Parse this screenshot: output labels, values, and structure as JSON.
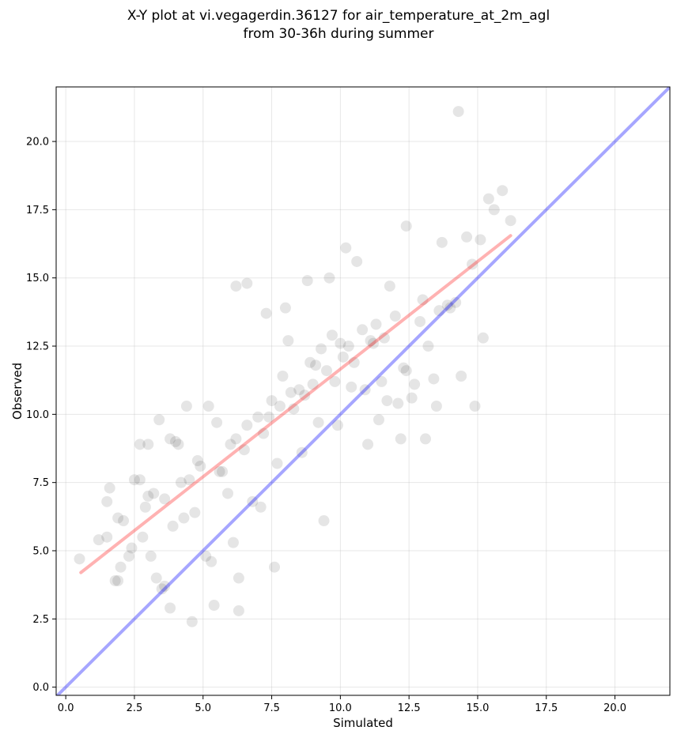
{
  "chart_data": {
    "type": "scatter",
    "title": "X-Y plot at vi.vegagerdin.36127 for air_temperature_at_2m_agl",
    "subtitle": "from 30-36h during summer",
    "xlabel": "Simulated",
    "ylabel": "Observed",
    "xlim": [
      -0.35,
      22.0
    ],
    "ylim": [
      -0.3,
      22.0
    ],
    "x_ticks": [
      "0.0",
      "2.5",
      "5.0",
      "7.5",
      "10.0",
      "12.5",
      "15.0",
      "17.5",
      "20.0"
    ],
    "y_ticks": [
      "0.0",
      "2.5",
      "5.0",
      "7.5",
      "10.0",
      "12.5",
      "15.0",
      "17.5",
      "20.0"
    ],
    "grid": true,
    "marker_color": "#000000",
    "marker_alpha": 0.1,
    "points": {
      "x": [
        0.5,
        1.2,
        1.5,
        1.6,
        1.8,
        1.9,
        2.0,
        2.1,
        2.3,
        2.5,
        2.7,
        2.8,
        2.9,
        3.0,
        3.2,
        3.4,
        3.5,
        3.6,
        3.8,
        3.8,
        3.9,
        4.1,
        4.3,
        4.5,
        4.6,
        4.9,
        5.2,
        5.4,
        5.6,
        5.9,
        6.0,
        6.2,
        6.3,
        6.6,
        7.1,
        7.3,
        7.6,
        7.7,
        8.0,
        8.1,
        8.6,
        8.8,
        9.2,
        9.4,
        9.6,
        9.9,
        10.2,
        10.6,
        11.0,
        11.2,
        11.5,
        11.8,
        12.0,
        12.2,
        12.4,
        12.7,
        13.0,
        13.1,
        13.4,
        13.7,
        14.0,
        14.3,
        14.6,
        14.9,
        15.1,
        15.4,
        15.6,
        15.9,
        16.2,
        1.5,
        1.9,
        2.4,
        3.1,
        3.6,
        4.2,
        4.4,
        4.8,
        5.1,
        5.3,
        5.5,
        6.1,
        6.3,
        6.8,
        7.4,
        8.2,
        9.1,
        9.7,
        10.3,
        10.8,
        11.4,
        12.1,
        12.9,
        13.5,
        14.2,
        3.3,
        3.0,
        2.7,
        4.0,
        4.7,
        5.7,
        6.5,
        7.0,
        7.8,
        8.5,
        9.0,
        9.5,
        10.0,
        10.5,
        11.1,
        11.7,
        12.4,
        13.2,
        13.9,
        14.8,
        6.2,
        6.6,
        7.2,
        7.5,
        7.9,
        8.3,
        8.7,
        8.9,
        9.3,
        9.8,
        10.1,
        10.4,
        10.9,
        11.3,
        11.6,
        12.3,
        12.6,
        13.6,
        14.4,
        15.2
      ],
      "y": [
        4.7,
        5.4,
        6.8,
        7.3,
        3.9,
        6.2,
        4.4,
        6.1,
        4.8,
        7.6,
        8.9,
        5.5,
        6.6,
        8.9,
        7.1,
        9.8,
        3.6,
        6.9,
        2.9,
        9.1,
        5.9,
        8.9,
        6.2,
        7.6,
        2.4,
        8.1,
        10.3,
        3.0,
        7.9,
        7.1,
        8.9,
        14.7,
        2.8,
        14.8,
        6.6,
        13.7,
        4.4,
        8.2,
        13.9,
        12.7,
        8.6,
        14.9,
        9.7,
        6.1,
        15.0,
        9.6,
        16.1,
        15.6,
        8.9,
        12.6,
        11.2,
        14.7,
        13.6,
        9.1,
        16.9,
        11.1,
        14.2,
        9.1,
        11.3,
        16.3,
        13.9,
        21.1,
        16.5,
        10.3,
        16.4,
        17.9,
        17.5,
        18.2,
        17.1,
        5.5,
        3.9,
        5.1,
        4.8,
        3.7,
        7.5,
        10.3,
        8.3,
        4.8,
        4.6,
        9.7,
        5.3,
        4.0,
        6.8,
        9.9,
        10.8,
        11.8,
        12.9,
        12.5,
        13.1,
        9.8,
        10.4,
        13.4,
        10.3,
        14.1,
        4.0,
        7.0,
        7.6,
        9.0,
        6.4,
        7.9,
        8.7,
        9.9,
        10.3,
        10.9,
        11.1,
        11.6,
        12.6,
        11.9,
        12.7,
        10.5,
        11.6,
        12.5,
        14.0,
        15.5,
        9.1,
        9.6,
        9.3,
        10.5,
        11.4,
        10.2,
        10.7,
        11.9,
        12.4,
        11.2,
        12.1,
        11.0,
        10.9,
        13.3,
        12.8,
        11.7,
        10.6,
        13.8,
        11.4,
        12.8
      ]
    },
    "fit_line": {
      "color": "#ff0000",
      "alpha": 0.3,
      "x": [
        0.55,
        16.2
      ],
      "y": [
        4.2,
        16.55
      ]
    },
    "identity_line": {
      "color": "#0000ff",
      "alpha": 0.35,
      "x": [
        -0.35,
        22.0
      ],
      "y": [
        -0.35,
        22.0
      ]
    }
  }
}
